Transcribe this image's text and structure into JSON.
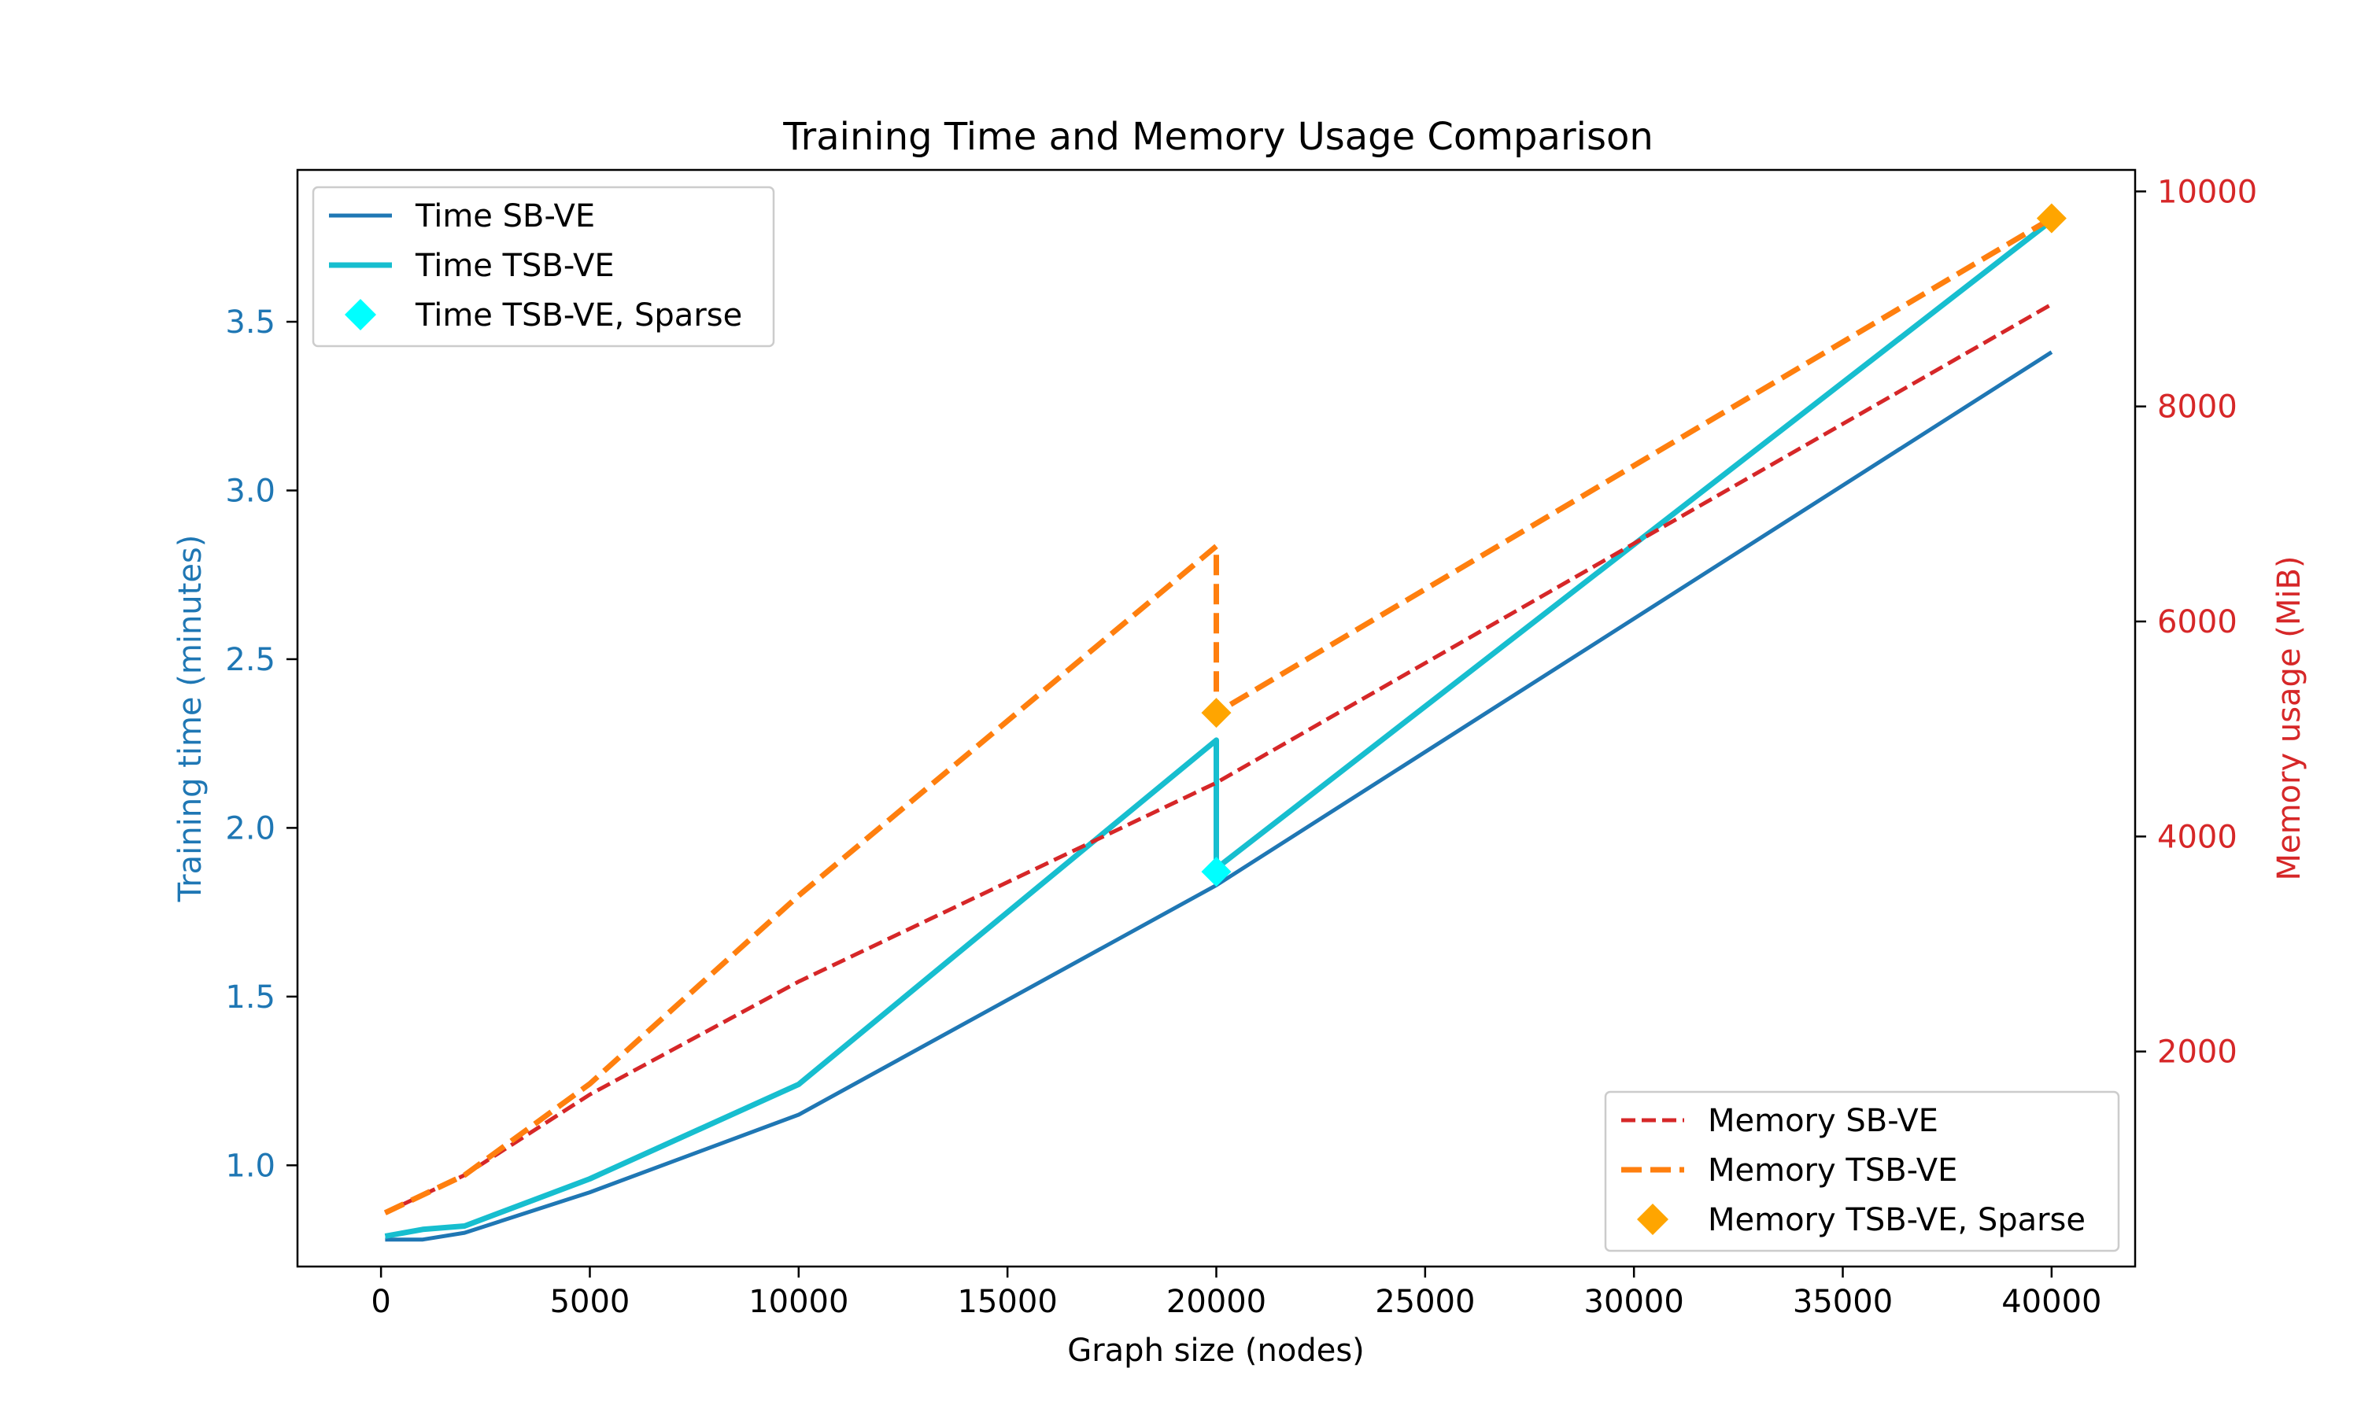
{
  "chart_data": {
    "type": "line",
    "title": "Training Time and Memory Usage Comparison",
    "xlabel": "Graph size (nodes)",
    "ylabel_left": "Training time (minutes)",
    "ylabel_right": "Memory usage (MiB)",
    "xlim": [
      -2000,
      42000
    ],
    "ylim_left": [
      0.7,
      3.95
    ],
    "ylim_right": [
      0,
      10200
    ],
    "grid": false,
    "x_ticks": [
      0,
      5000,
      10000,
      15000,
      20000,
      25000,
      30000,
      35000,
      40000
    ],
    "x_tick_labels": [
      "0",
      "5000",
      "10000",
      "15000",
      "20000",
      "25000",
      "30000",
      "35000",
      "40000"
    ],
    "y_left_ticks": [
      1.0,
      1.5,
      2.0,
      2.5,
      3.0,
      3.5
    ],
    "y_left_tick_labels": [
      "1.0",
      "1.5",
      "2.0",
      "2.5",
      "3.0",
      "3.5"
    ],
    "y_right_ticks": [
      2000,
      4000,
      6000,
      8000,
      10000
    ],
    "y_right_tick_labels": [
      "2000",
      "4000",
      "6000",
      "8000",
      "10000"
    ],
    "colors": {
      "left_axis": "#1f77b4",
      "right_axis": "#d62728"
    },
    "series": [
      {
        "name": "Time SB-VE",
        "axis": "left",
        "style": "solid",
        "width": 5,
        "color": "#1f77b4",
        "x": [
          100,
          1000,
          2000,
          5000,
          10000,
          20000,
          40000
        ],
        "y": [
          0.78,
          0.78,
          0.8,
          0.92,
          1.15,
          1.83,
          3.41
        ]
      },
      {
        "name": "Time TSB-VE",
        "axis": "left",
        "style": "solid",
        "width": 7,
        "color": "#17becf",
        "x": [
          100,
          1000,
          2000,
          5000,
          10000,
          20000,
          20000,
          40000
        ],
        "y": [
          0.79,
          0.81,
          0.82,
          0.96,
          1.24,
          2.26,
          1.88,
          3.8
        ]
      },
      {
        "name": "Time TSB-VE, Sparse",
        "axis": "left",
        "style": "marker",
        "color": "#00ffff",
        "x": [
          20000
        ],
        "y": [
          1.87
        ]
      },
      {
        "name": "Memory SB-VE",
        "axis": "right",
        "style": "dashed-thin",
        "width": 5,
        "color": "#d62728",
        "x": [
          100,
          2000,
          5000,
          10000,
          20000,
          40000
        ],
        "y": [
          500,
          850,
          1600,
          2650,
          4500,
          8950
        ]
      },
      {
        "name": "Memory TSB-VE",
        "axis": "right",
        "style": "dashed-thick",
        "width": 7,
        "color": "#ff7f0e",
        "x": [
          100,
          2000,
          5000,
          10000,
          20000,
          20000,
          40000
        ],
        "y": [
          500,
          850,
          1700,
          3450,
          6700,
          5150,
          9750
        ]
      },
      {
        "name": "Memory TSB-VE, Sparse",
        "axis": "right",
        "style": "marker",
        "color": "#ffa500",
        "x": [
          20000,
          40000
        ],
        "y": [
          5150,
          9750
        ]
      }
    ],
    "legends": [
      {
        "placement": "upper-left",
        "entries": [
          "Time SB-VE",
          "Time TSB-VE",
          "Time TSB-VE, Sparse"
        ]
      },
      {
        "placement": "lower-right",
        "entries": [
          "Memory SB-VE",
          "Memory TSB-VE",
          "Memory TSB-VE, Sparse"
        ]
      }
    ]
  }
}
